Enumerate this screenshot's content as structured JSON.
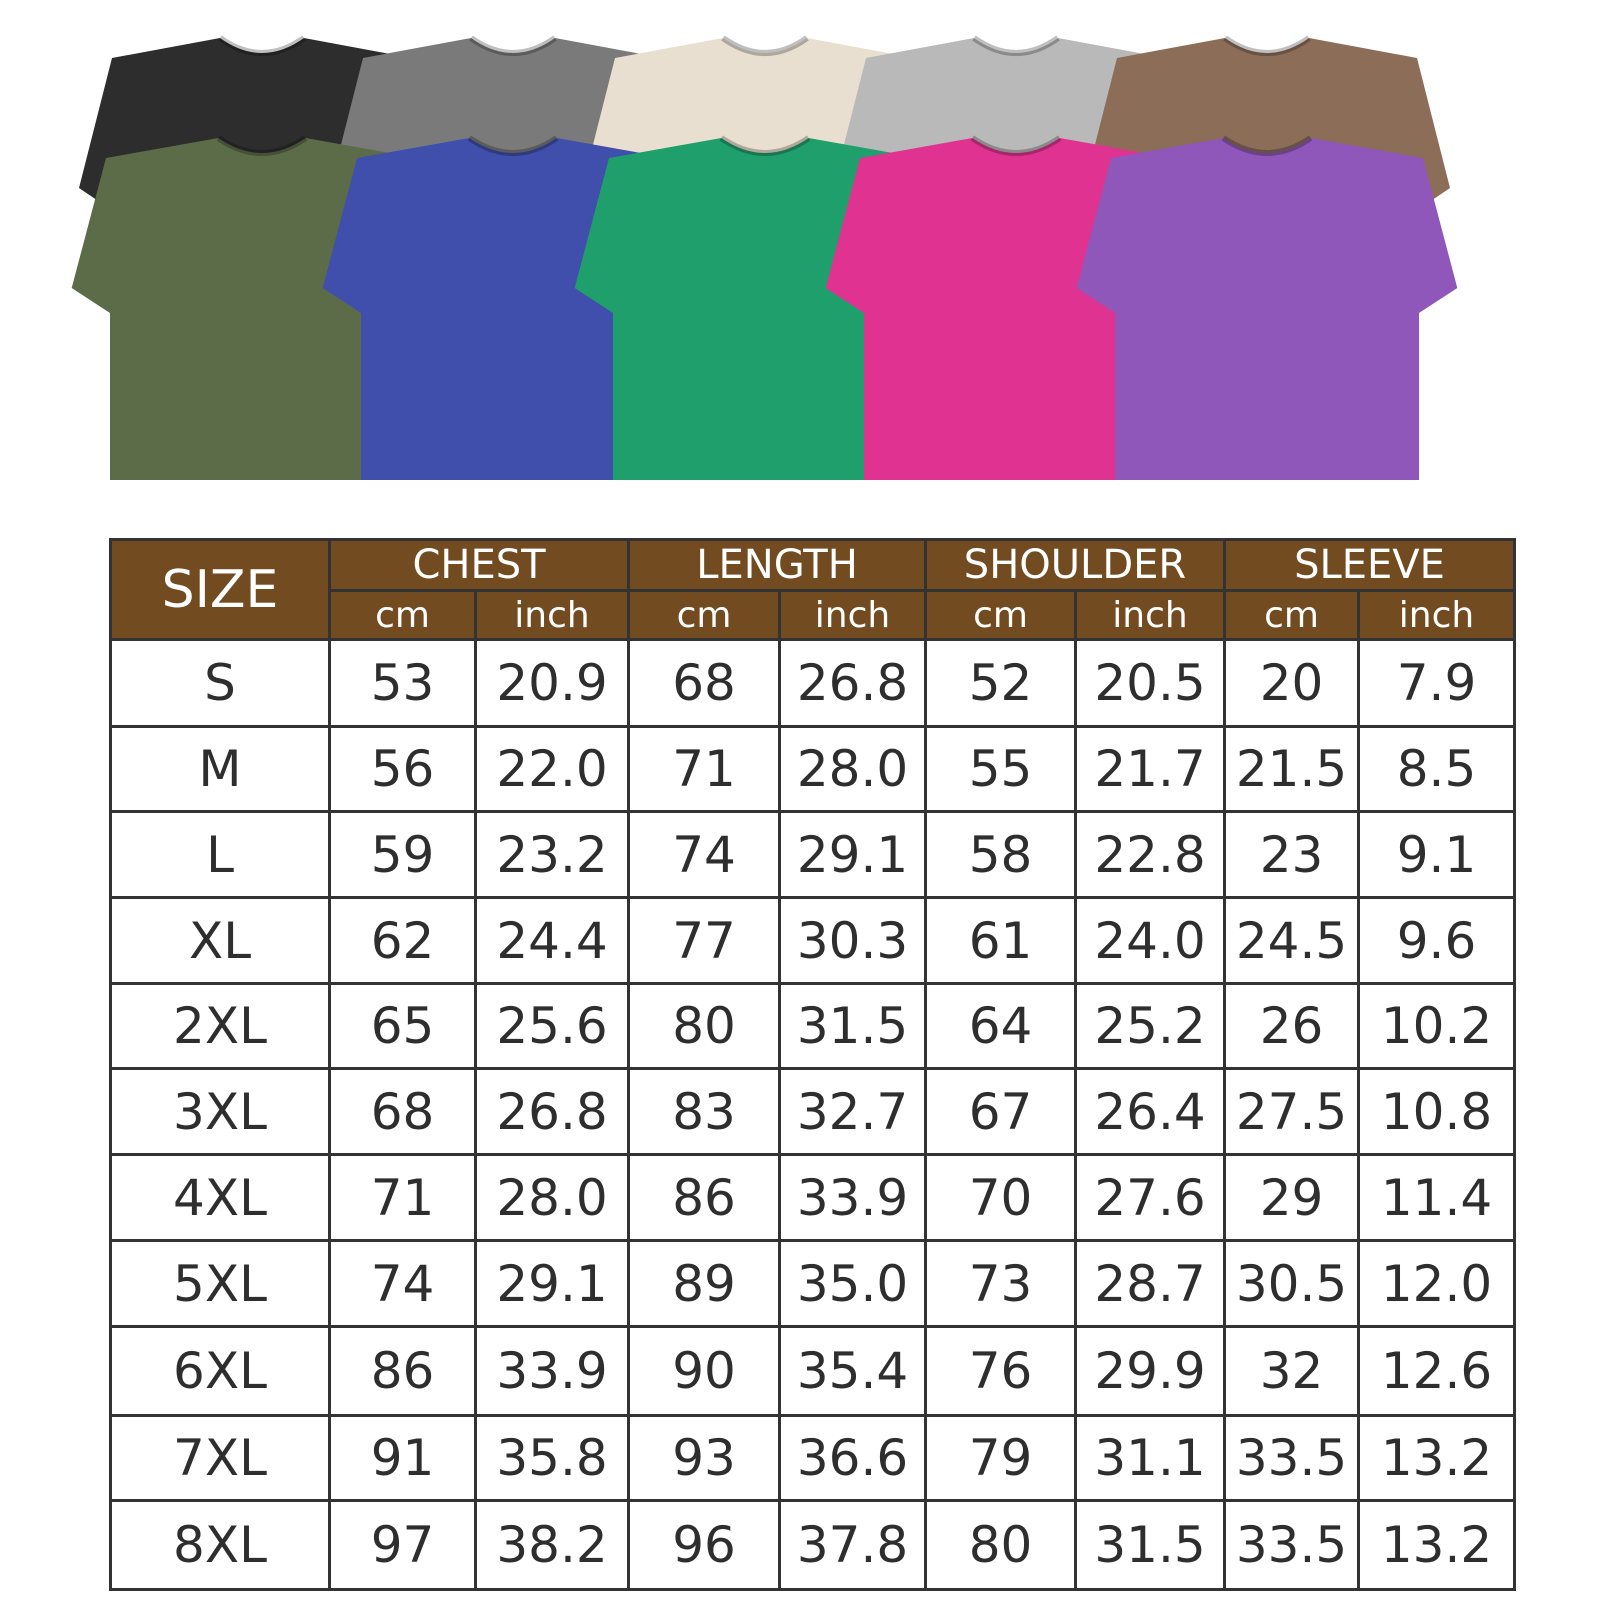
{
  "shirts": {
    "back_row": [
      {
        "color_hex": "#2d2d2d"
      },
      {
        "color_hex": "#7a7a7a"
      },
      {
        "color_hex": "#e9dfd0"
      },
      {
        "color_hex": "#b9b9b9"
      },
      {
        "color_hex": "#8b6d58"
      }
    ],
    "front_row": [
      {
        "color_hex": "#5c6c48"
      },
      {
        "color_hex": "#3f4fab"
      },
      {
        "color_hex": "#1f9f6b"
      },
      {
        "color_hex": "#e03290"
      },
      {
        "color_hex": "#8f57ba"
      }
    ]
  },
  "table": {
    "header_color": "#724b20",
    "size_label": "SIZE",
    "groups": [
      "CHEST",
      "LENGTH",
      "SHOULDER",
      "SLEEVE"
    ],
    "unit_cm": "cm",
    "unit_inch": "inch",
    "rows": [
      [
        "S",
        "53",
        "20.9",
        "68",
        "26.8",
        "52",
        "20.5",
        "20",
        "7.9"
      ],
      [
        "M",
        "56",
        "22.0",
        "71",
        "28.0",
        "55",
        "21.7",
        "21.5",
        "8.5"
      ],
      [
        "L",
        "59",
        "23.2",
        "74",
        "29.1",
        "58",
        "22.8",
        "23",
        "9.1"
      ],
      [
        "XL",
        "62",
        "24.4",
        "77",
        "30.3",
        "61",
        "24.0",
        "24.5",
        "9.6"
      ],
      [
        "2XL",
        "65",
        "25.6",
        "80",
        "31.5",
        "64",
        "25.2",
        "26",
        "10.2"
      ],
      [
        "3XL",
        "68",
        "26.8",
        "83",
        "32.7",
        "67",
        "26.4",
        "27.5",
        "10.8"
      ],
      [
        "4XL",
        "71",
        "28.0",
        "86",
        "33.9",
        "70",
        "27.6",
        "29",
        "11.4"
      ],
      [
        "5XL",
        "74",
        "29.1",
        "89",
        "35.0",
        "73",
        "28.7",
        "30.5",
        "12.0"
      ],
      [
        "6XL",
        "86",
        "33.9",
        "90",
        "35.4",
        "76",
        "29.9",
        "32",
        "12.6"
      ],
      [
        "7XL",
        "91",
        "35.8",
        "93",
        "36.6",
        "79",
        "31.1",
        "33.5",
        "13.2"
      ],
      [
        "8XL",
        "97",
        "38.2",
        "96",
        "37.8",
        "80",
        "31.5",
        "33.5",
        "13.2"
      ]
    ]
  }
}
